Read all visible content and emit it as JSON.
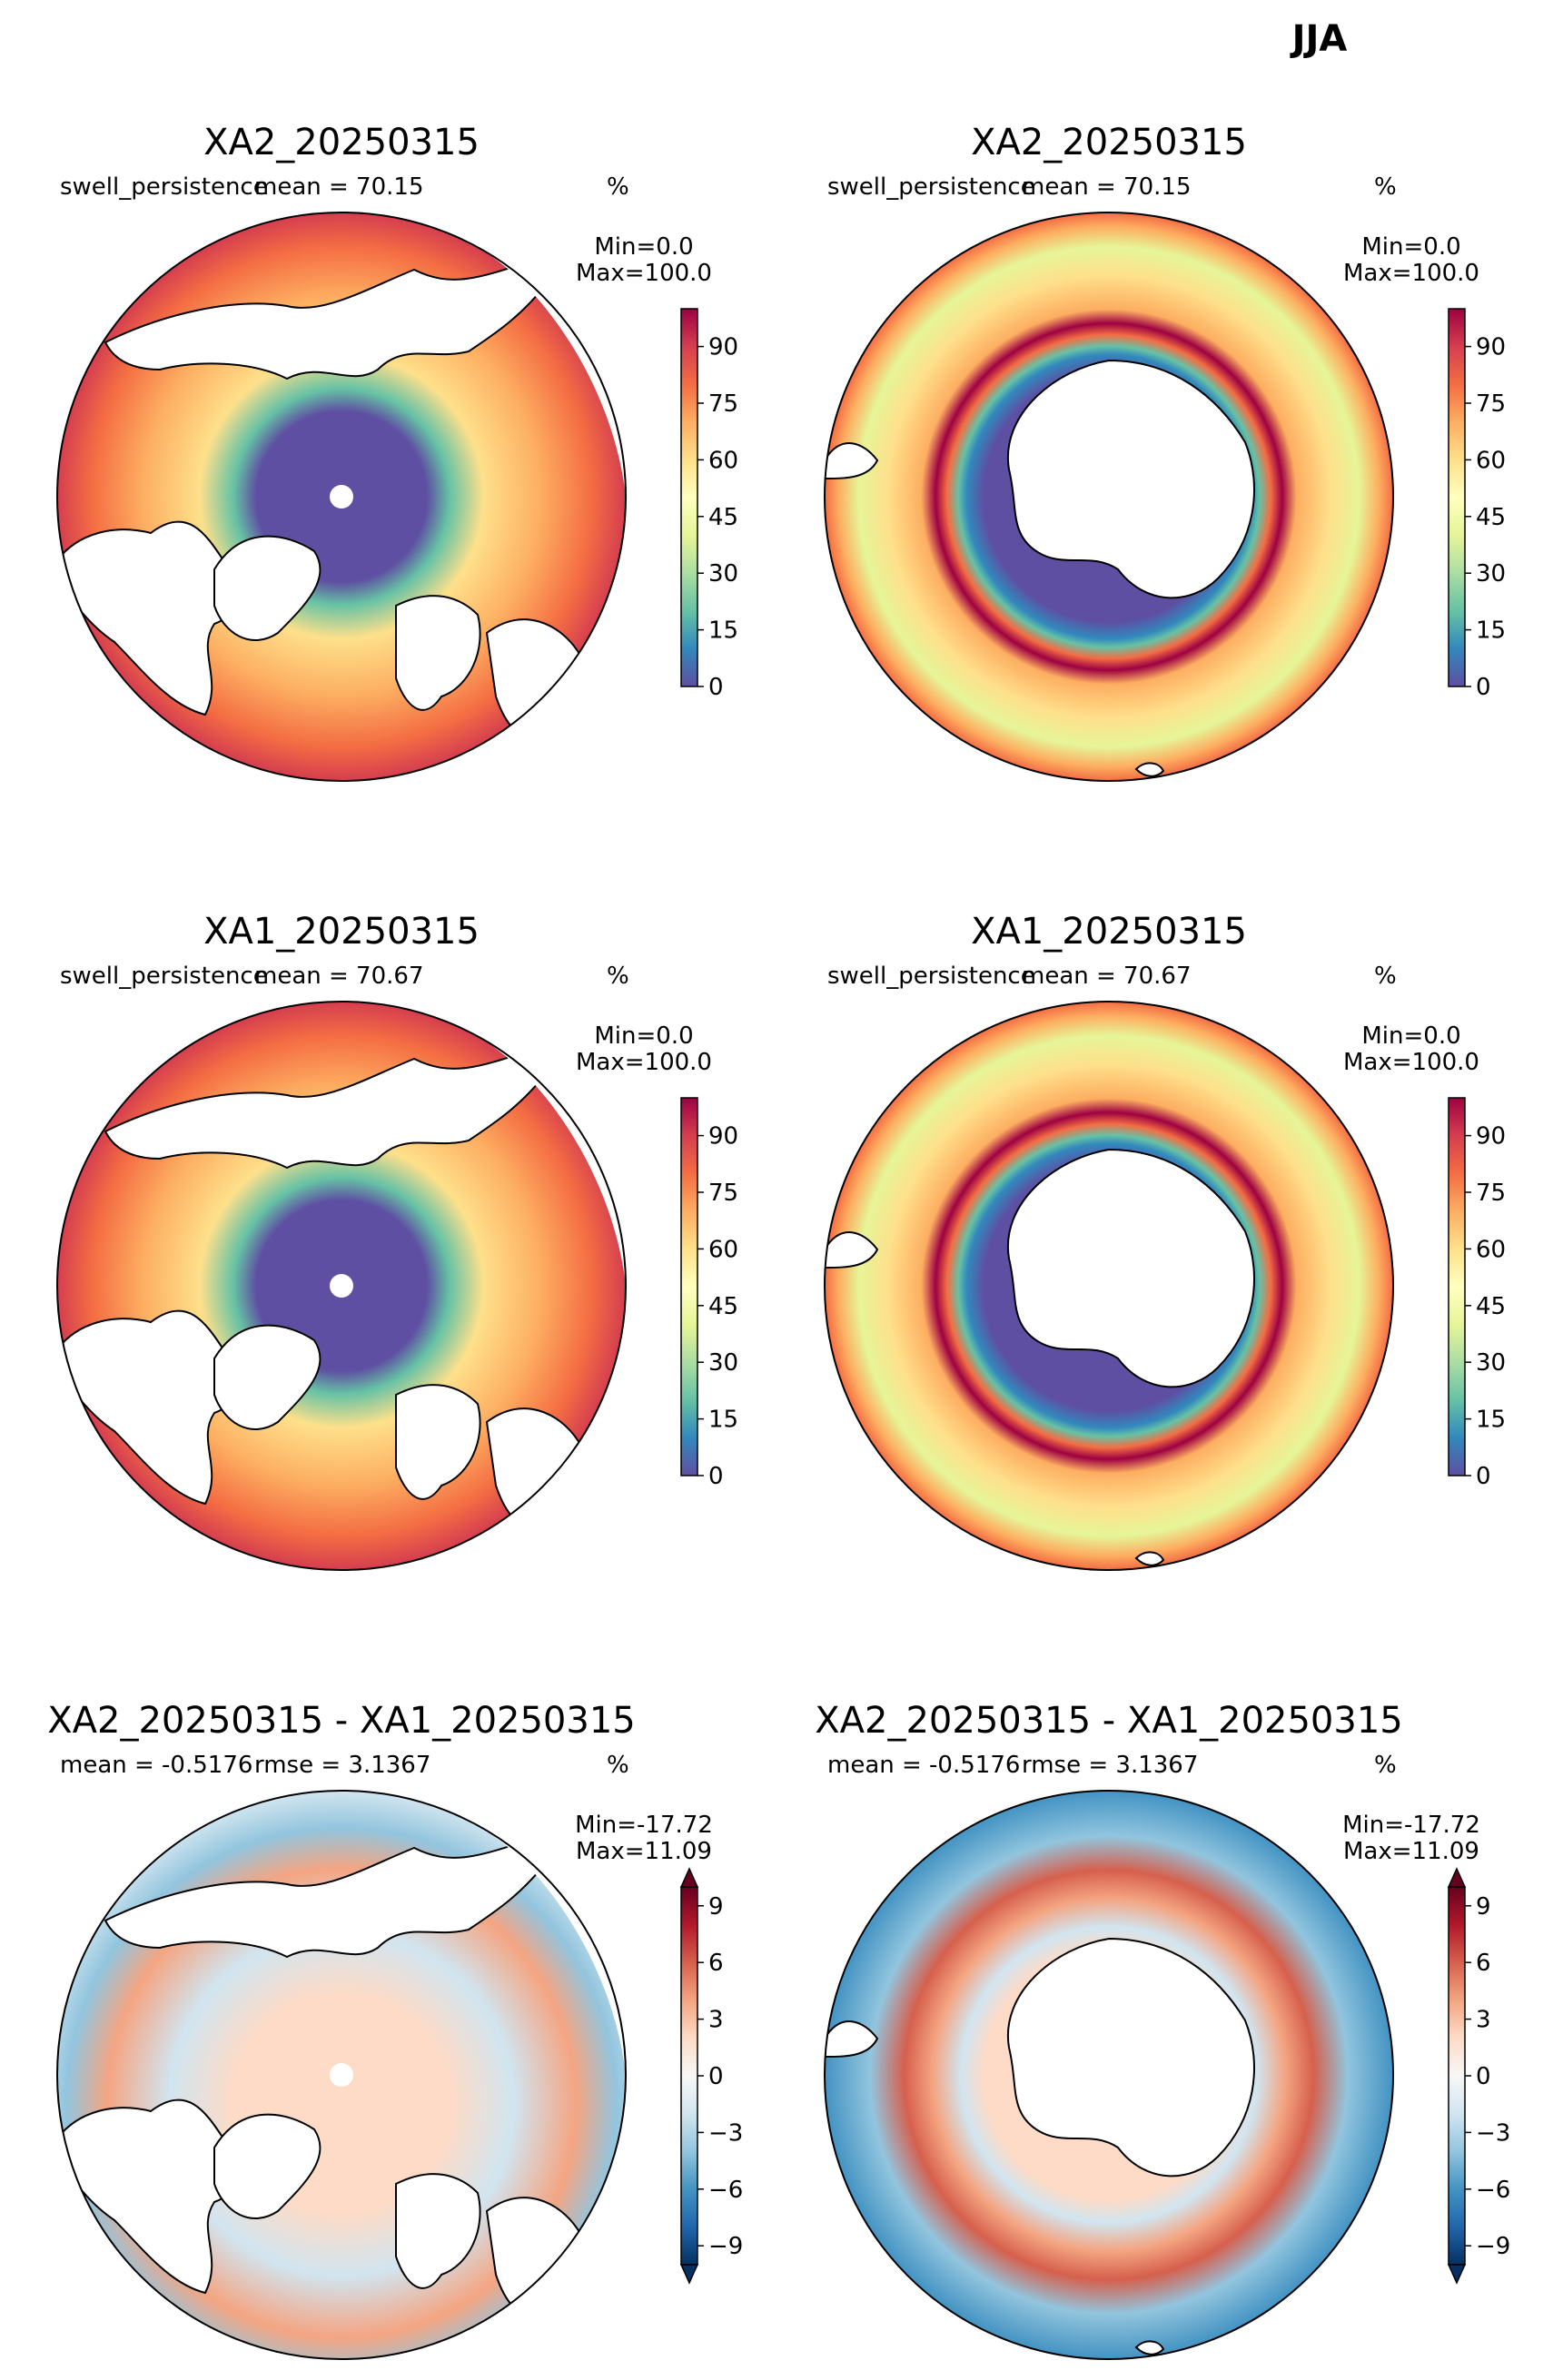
{
  "figure_title": "JJA",
  "colors": {
    "ocean_fill": "#ffffff",
    "frame": "#000000",
    "spectral_ramp": [
      "#5e4fa2",
      "#3288bd",
      "#66c2a5",
      "#abdda4",
      "#e6f598",
      "#ffffbf",
      "#fee08b",
      "#fdae61",
      "#f46d43",
      "#d53e4f",
      "#9e0142"
    ],
    "rdbu_ramp": [
      "#053061",
      "#2166ac",
      "#4393c3",
      "#92c5de",
      "#d1e5f0",
      "#f7f7f7",
      "#fddbc7",
      "#f4a582",
      "#d6604d",
      "#b2182b",
      "#67001f"
    ],
    "sea_ice": "#5e4fa2",
    "land": "#ffffff"
  },
  "panels": [
    {
      "id": "r1c1",
      "title": "XA2_20250315",
      "left_label": "swell_persistence",
      "center_label": "mean = 70.15",
      "units": "%",
      "minmax": [
        "Min=0.0",
        "Max=100.0"
      ],
      "hemisphere": "north",
      "colormap": "spectral",
      "colorbar": {
        "ticks": [
          "0",
          "15",
          "30",
          "45",
          "60",
          "75",
          "90"
        ],
        "extend": "neither"
      }
    },
    {
      "id": "r1c2",
      "title": "XA2_20250315",
      "left_label": "swell_persistence",
      "center_label": "mean = 70.15",
      "units": "%",
      "minmax": [
        "Min=0.0",
        "Max=100.0"
      ],
      "hemisphere": "south",
      "colormap": "spectral",
      "colorbar": {
        "ticks": [
          "0",
          "15",
          "30",
          "45",
          "60",
          "75",
          "90"
        ],
        "extend": "neither"
      }
    },
    {
      "id": "r2c1",
      "title": "XA1_20250315",
      "left_label": "swell_persistence",
      "center_label": "mean = 70.67",
      "units": "%",
      "minmax": [
        "Min=0.0",
        "Max=100.0"
      ],
      "hemisphere": "north",
      "colormap": "spectral",
      "colorbar": {
        "ticks": [
          "0",
          "15",
          "30",
          "45",
          "60",
          "75",
          "90"
        ],
        "extend": "neither"
      }
    },
    {
      "id": "r2c2",
      "title": "XA1_20250315",
      "left_label": "swell_persistence",
      "center_label": "mean = 70.67",
      "units": "%",
      "minmax": [
        "Min=0.0",
        "Max=100.0"
      ],
      "hemisphere": "south",
      "colormap": "spectral",
      "colorbar": {
        "ticks": [
          "0",
          "15",
          "30",
          "45",
          "60",
          "75",
          "90"
        ],
        "extend": "neither"
      }
    },
    {
      "id": "r3c1",
      "title": "XA2_20250315 - XA1_20250315",
      "left_label": "mean = -0.5176",
      "center_label": "rmse = 3.1367",
      "units": "%",
      "minmax": [
        "Min=-17.72",
        "Max=11.09"
      ],
      "hemisphere": "north",
      "colormap": "rdbu",
      "colorbar": {
        "ticks": [
          "−9",
          "−6",
          "−3",
          "0",
          "3",
          "6",
          "9"
        ],
        "extend": "both"
      }
    },
    {
      "id": "r3c2",
      "title": "XA2_20250315 - XA1_20250315",
      "left_label": "mean = -0.5176",
      "center_label": "rmse = 3.1367",
      "units": "%",
      "minmax": [
        "Min=-17.72",
        "Max=11.09"
      ],
      "hemisphere": "south",
      "colormap": "rdbu",
      "colorbar": {
        "ticks": [
          "−9",
          "−6",
          "−3",
          "0",
          "3",
          "6",
          "9"
        ],
        "extend": "both"
      }
    }
  ]
}
